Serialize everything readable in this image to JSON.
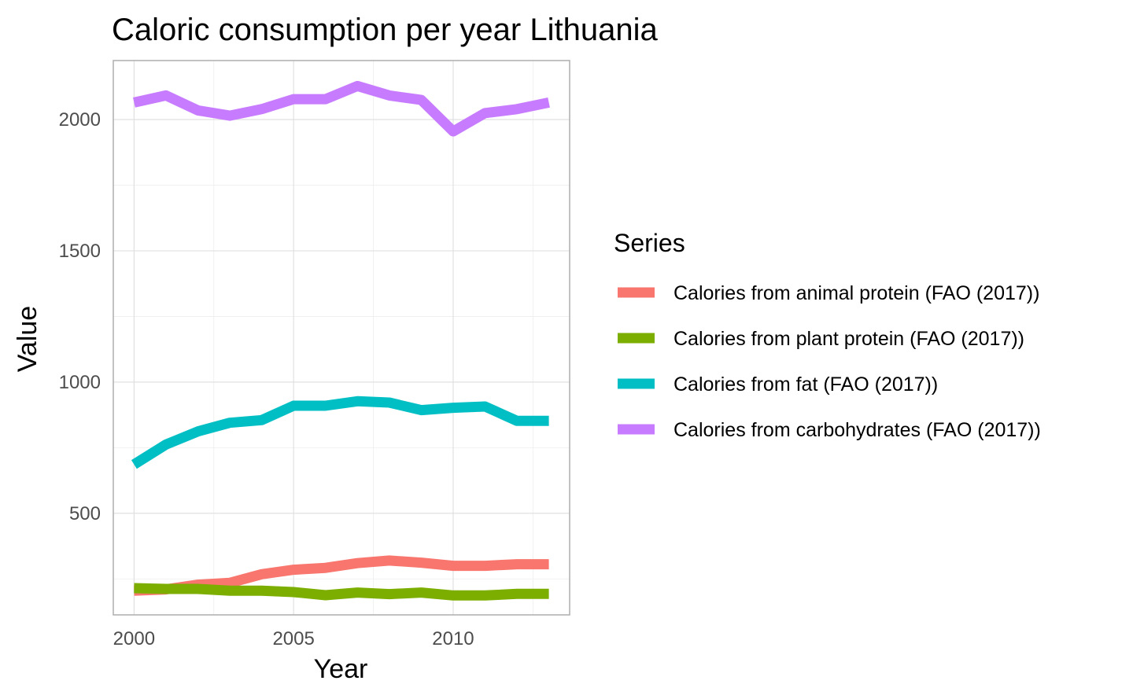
{
  "chart_data": {
    "type": "line",
    "title": "Caloric consumption per year Lithuania",
    "xlabel": "Year",
    "ylabel": "Value",
    "xlim": [
      1999.35,
      2013.65
    ],
    "ylim": [
      113,
      2225
    ],
    "x_ticks": [
      2000,
      2005,
      2010
    ],
    "y_ticks": [
      500,
      1000,
      1500,
      2000
    ],
    "grid": true,
    "legend": {
      "title": "Series",
      "position": "right"
    },
    "x": [
      2000,
      2001,
      2002,
      2003,
      2004,
      2005,
      2006,
      2007,
      2008,
      2009,
      2010,
      2011,
      2012,
      2013
    ],
    "series": [
      {
        "name": "Calories from animal protein (FAO (2017))",
        "color": "#F8766D",
        "values": [
          205,
          210,
          228,
          235,
          268,
          285,
          292,
          310,
          320,
          312,
          300,
          300,
          306,
          306
        ]
      },
      {
        "name": "Calories from plant protein (FAO (2017))",
        "color": "#7CAE00",
        "values": [
          215,
          212,
          212,
          205,
          205,
          200,
          188,
          198,
          192,
          198,
          187,
          187,
          193,
          193
        ]
      },
      {
        "name": "Calories from fat (FAO (2017))",
        "color": "#00BFC4",
        "values": [
          686,
          762,
          812,
          845,
          855,
          910,
          910,
          927,
          922,
          893,
          902,
          907,
          852,
          852
        ]
      },
      {
        "name": "Calories from carbohydrates (FAO (2017))",
        "color": "#C77CFF",
        "values": [
          2065,
          2092,
          2035,
          2015,
          2040,
          2078,
          2078,
          2128,
          2092,
          2075,
          1955,
          2025,
          2040,
          2065
        ]
      }
    ]
  }
}
